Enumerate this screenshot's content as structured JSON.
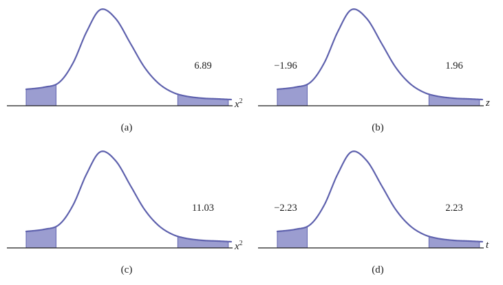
{
  "figure": {
    "background": "#ffffff"
  },
  "colors": {
    "curve": "#5e61ad",
    "fill": "#9b9dd0",
    "axis": "#1a1a1a",
    "text": "#1a1a1a"
  },
  "panels": [
    {
      "caption": "(a)",
      "axis_base": "x",
      "axis_sup": "2",
      "left_value": "",
      "right_value": "6.89"
    },
    {
      "caption": "(b)",
      "axis_base": "z",
      "axis_sup": "",
      "left_value": "−1.96",
      "right_value": "1.96"
    },
    {
      "caption": "(c)",
      "axis_base": "x",
      "axis_sup": "2",
      "left_value": "",
      "right_value": "11.03"
    },
    {
      "caption": "(d)",
      "axis_base": "t",
      "axis_sup": "",
      "left_value": "−2.23",
      "right_value": "2.23"
    }
  ],
  "chart_data": [
    {
      "type": "area",
      "title": "(a)",
      "xlabel": "x²",
      "curve": "right-skewed density curve over unlabeled horizontal axis",
      "shaded_regions": [
        "left tail",
        "right tail"
      ],
      "critical_values": [
        6.89
      ],
      "annotations": [
        "6.89"
      ],
      "legend": "none",
      "grid": false
    },
    {
      "type": "area",
      "title": "(b)",
      "xlabel": "z",
      "curve": "bell-shaped density curve over unlabeled horizontal axis",
      "shaded_regions": [
        "left tail",
        "right tail"
      ],
      "critical_values": [
        -1.96,
        1.96
      ],
      "annotations": [
        "−1.96",
        "1.96"
      ],
      "legend": "none",
      "grid": false
    },
    {
      "type": "area",
      "title": "(c)",
      "xlabel": "x²",
      "curve": "right-skewed density curve over unlabeled horizontal axis",
      "shaded_regions": [
        "left tail",
        "right tail"
      ],
      "critical_values": [
        11.03
      ],
      "annotations": [
        "11.03"
      ],
      "legend": "none",
      "grid": false
    },
    {
      "type": "area",
      "title": "(d)",
      "xlabel": "t",
      "curve": "bell-shaped density curve over unlabeled horizontal axis",
      "shaded_regions": [
        "left tail",
        "right tail"
      ],
      "critical_values": [
        -2.23,
        2.23
      ],
      "annotations": [
        "−2.23",
        "2.23"
      ],
      "legend": "none",
      "grid": false
    }
  ]
}
